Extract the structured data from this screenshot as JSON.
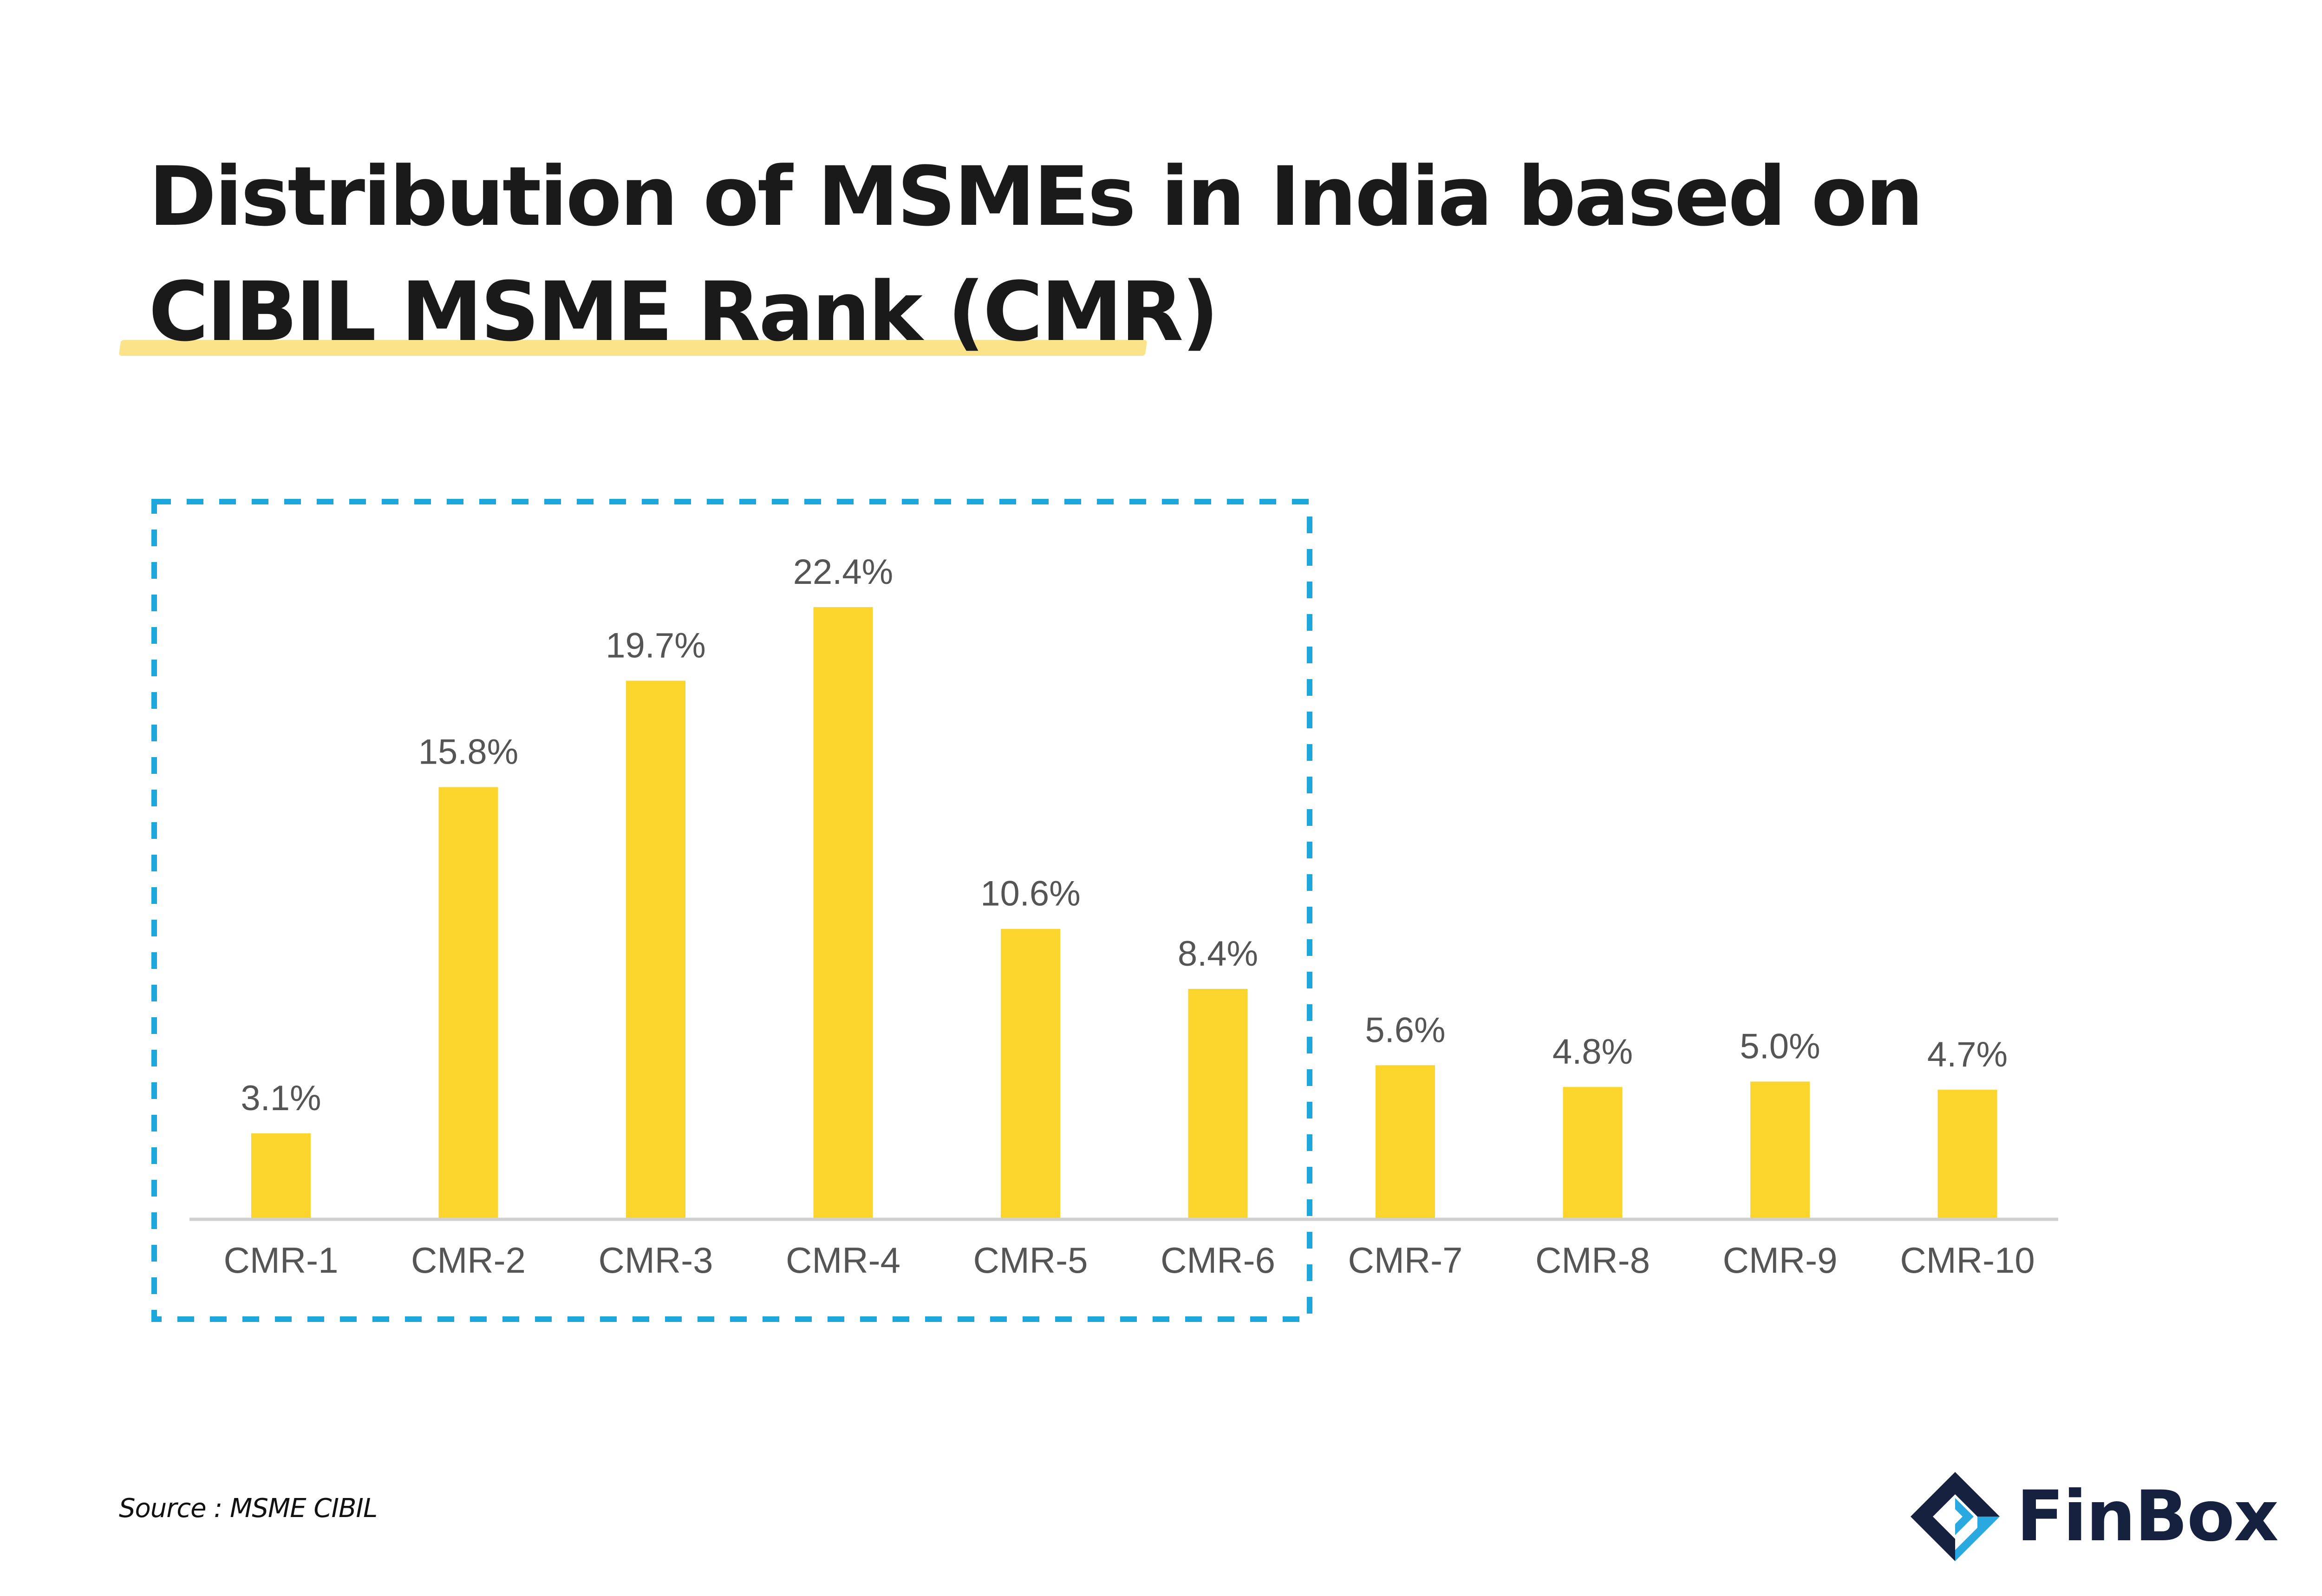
{
  "title": {
    "line1": "Distribution of MSMEs in India based on",
    "line2": "CIBIL MSME Rank (CMR)"
  },
  "chart_data": {
    "type": "bar",
    "title": "Distribution of MSMEs in India based on CIBIL MSME Rank (CMR)",
    "xlabel": "",
    "ylabel": "",
    "ylim": [
      0,
      22.4
    ],
    "grid": false,
    "categories": [
      "CMR-1",
      "CMR-2",
      "CMR-3",
      "CMR-4",
      "CMR-5",
      "CMR-6",
      "CMR-7",
      "CMR-8",
      "CMR-9",
      "CMR-10"
    ],
    "values": [
      3.1,
      15.8,
      19.7,
      22.4,
      10.6,
      8.4,
      5.6,
      4.8,
      5.0,
      4.7
    ],
    "data_labels": [
      "3.1%",
      "15.8%",
      "19.7%",
      "22.4%",
      "10.6%",
      "8.4%",
      "5.6%",
      "4.8%",
      "5.0%",
      "4.7%"
    ],
    "highlight": {
      "categories": [
        "CMR-1",
        "CMR-2",
        "CMR-3",
        "CMR-4",
        "CMR-5",
        "CMR-6"
      ],
      "style": "dashed box"
    }
  },
  "colors": {
    "bar": "#fbd52c",
    "highlight_box": "#1ea7dc",
    "axis": "#d0d0d0",
    "label_text": "#555555",
    "title_text": "#1a1a1a",
    "underline": "#fbe38a",
    "logo_dark": "#15213f",
    "logo_blue": "#2aa8e0"
  },
  "source": {
    "text": "Source : MSME CIBIL"
  },
  "logo": {
    "name": "FinBox",
    "icon": "finbox-logo-icon"
  }
}
